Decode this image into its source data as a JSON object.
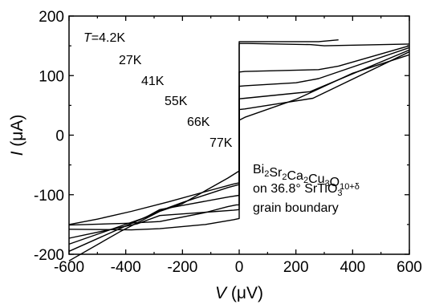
{
  "chart_data": {
    "type": "line",
    "x_axis": {
      "title_var": "V",
      "title_unit": " (μV)",
      "range": [
        -600,
        600
      ],
      "ticks": [
        -600,
        -400,
        -200,
        0,
        200,
        400,
        600
      ],
      "tick_labels": [
        "-600",
        "-400",
        "-200",
        "0",
        "200",
        "400",
        "600"
      ]
    },
    "y_axis": {
      "title_var": "I",
      "title_unit": " (μA)",
      "range": [
        -200,
        200
      ],
      "ticks": [
        -200,
        -100,
        0,
        100,
        200
      ],
      "tick_labels": [
        "-200",
        "-100",
        "0",
        "100",
        "200"
      ]
    },
    "grid": false,
    "legend": "none",
    "temperature_labels": [
      "T=4.2K",
      "27K",
      "41K",
      "55K",
      "66K",
      "77K"
    ],
    "sample_label": {
      "formula_parts": [
        {
          "t": "Bi",
          "sub": false
        },
        {
          "t": "2",
          "sub": true
        },
        {
          "t": "Sr",
          "sub": false
        },
        {
          "t": "2",
          "sub": true
        },
        {
          "t": "Ca",
          "sub": false
        },
        {
          "t": "2",
          "sub": true
        },
        {
          "t": "Cu",
          "sub": false
        },
        {
          "t": "3",
          "sub": true
        },
        {
          "t": "O",
          "sub": false
        },
        {
          "t": "10+δ",
          "sub": true
        }
      ],
      "line2_parts": [
        {
          "t": "on 36.8° SrTiO",
          "sub": false
        },
        {
          "t": "3",
          "sub": true
        }
      ],
      "line3": "grain boundary"
    },
    "series": [
      {
        "points": [
          [
            -600,
            -151
          ],
          [
            -400,
            -148
          ],
          [
            -280,
            -145
          ],
          [
            -120,
            -130
          ],
          [
            -40,
            -120
          ],
          [
            -10,
            -117
          ],
          [
            0,
            -117
          ],
          [
            0,
            157
          ],
          [
            10,
            157
          ],
          [
            40,
            157
          ],
          [
            280,
            157
          ],
          [
            350,
            160
          ]
        ]
      },
      {
        "points": [
          [
            -600,
            -150
          ],
          [
            -500,
            -141
          ],
          [
            -380,
            -128
          ],
          [
            -250,
            -112
          ],
          [
            -120,
            -95
          ],
          [
            -20,
            -82
          ],
          [
            0,
            -80
          ],
          [
            0,
            154
          ],
          [
            30,
            154
          ],
          [
            250,
            152
          ],
          [
            300,
            150
          ],
          [
            600,
            153
          ]
        ]
      },
      {
        "points": [
          [
            -600,
            -158
          ],
          [
            -380,
            -159
          ],
          [
            -280,
            -157
          ],
          [
            -120,
            -150
          ],
          [
            -20,
            -142
          ],
          [
            0,
            -140
          ],
          [
            0,
            106
          ],
          [
            20,
            107
          ],
          [
            280,
            110
          ],
          [
            350,
            116
          ],
          [
            600,
            150
          ]
        ]
      },
      {
        "points": [
          [
            -600,
            -173
          ],
          [
            -360,
            -149
          ],
          [
            -280,
            -135
          ],
          [
            -20,
            -126
          ],
          [
            0,
            -125
          ],
          [
            0,
            82
          ],
          [
            20,
            83
          ],
          [
            200,
            88
          ],
          [
            280,
            95
          ],
          [
            600,
            147
          ]
        ]
      },
      {
        "points": [
          [
            -600,
            -183
          ],
          [
            -330,
            -138
          ],
          [
            -280,
            -125
          ],
          [
            -40,
            -104
          ],
          [
            0,
            -101
          ],
          [
            0,
            61
          ],
          [
            20,
            62
          ],
          [
            250,
            73
          ],
          [
            600,
            143
          ]
        ]
      },
      {
        "points": [
          [
            -600,
            -195
          ],
          [
            -280,
            -127
          ],
          [
            -200,
            -113
          ],
          [
            -40,
            -88
          ],
          [
            0,
            -83
          ],
          [
            0,
            43
          ],
          [
            20,
            44
          ],
          [
            260,
            62
          ],
          [
            600,
            140
          ]
        ]
      },
      {
        "points": [
          [
            -600,
            -211
          ],
          [
            -420,
            -162
          ],
          [
            -280,
            -128
          ],
          [
            -200,
            -115
          ],
          [
            -40,
            -72
          ],
          [
            0,
            -60
          ],
          [
            0,
            25
          ],
          [
            20,
            30
          ],
          [
            200,
            60
          ],
          [
            400,
            104
          ],
          [
            600,
            135
          ]
        ]
      }
    ]
  }
}
